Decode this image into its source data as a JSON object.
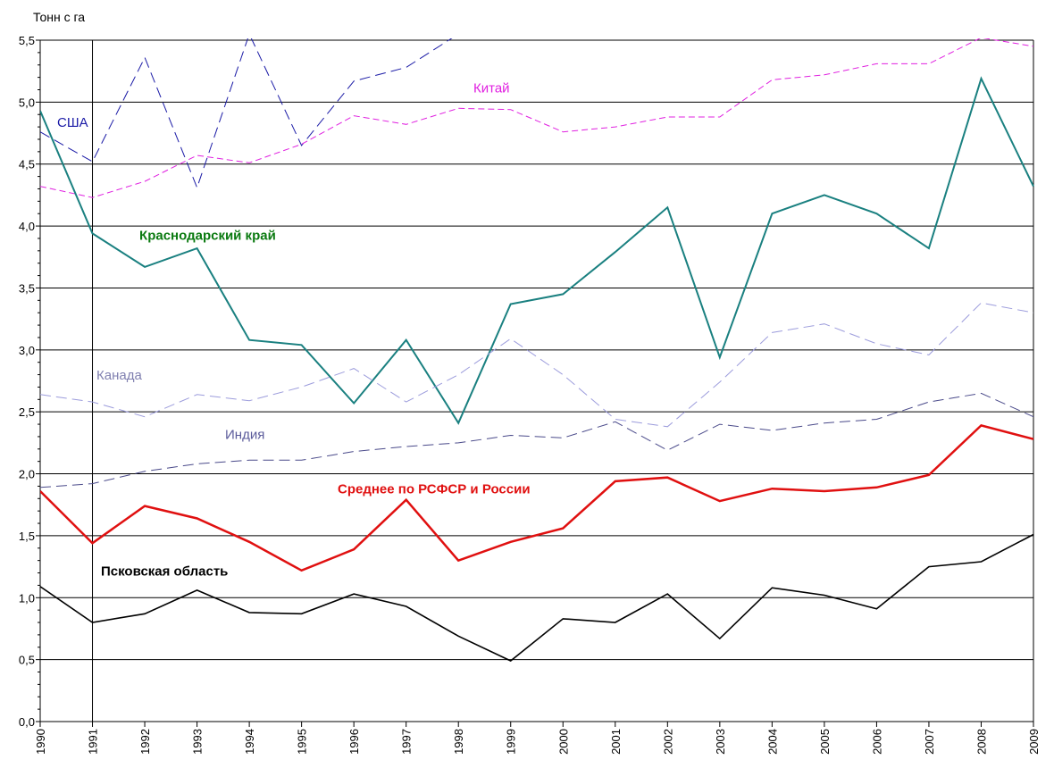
{
  "chart_data": {
    "type": "line",
    "ylabel": "Тонн с га",
    "xlabel": "",
    "title": "",
    "ylim": [
      0,
      5.5
    ],
    "ytick_step": 0.5,
    "y_tick_labels": [
      "0,0",
      "0,5",
      "1,0",
      "1,5",
      "2,0",
      "2,5",
      "3,0",
      "3,5",
      "4,0",
      "4,5",
      "5,0",
      "5,5"
    ],
    "x": [
      "1990",
      "1991",
      "1992",
      "1993",
      "1994",
      "1995",
      "1996",
      "1997",
      "1998",
      "1999",
      "2000",
      "2001",
      "2002",
      "2003",
      "2004",
      "2005",
      "2006",
      "2007",
      "2008",
      "2009"
    ],
    "grid": "horizontal",
    "reference_line_year": "1991",
    "series": [
      {
        "name": "США",
        "color": "#1a1aa6",
        "style": "long-dash",
        "values": [
          4.76,
          4.52,
          5.36,
          4.31,
          5.55,
          4.65,
          5.17,
          5.28,
          5.55,
          null,
          null,
          null,
          null,
          null,
          null,
          null,
          null,
          null,
          null,
          null
        ]
      },
      {
        "name": "Китай",
        "color": "#e020e0",
        "style": "dash",
        "values": [
          4.32,
          4.23,
          4.36,
          4.57,
          4.51,
          4.66,
          4.89,
          4.82,
          4.95,
          4.94,
          4.76,
          4.8,
          4.88,
          4.88,
          5.18,
          5.22,
          5.31,
          5.31,
          5.52,
          5.45
        ]
      },
      {
        "name": "Краснодарский край",
        "color": "#1a8080",
        "style": "solid",
        "values": [
          4.93,
          3.94,
          3.67,
          3.82,
          3.08,
          3.04,
          2.57,
          3.08,
          2.41,
          3.37,
          3.45,
          3.79,
          4.15,
          2.94,
          4.1,
          4.25,
          4.1,
          3.82,
          5.19,
          4.32
        ]
      },
      {
        "name": "Канада",
        "color": "#9c9cdc",
        "style": "long-dash",
        "values": [
          2.64,
          2.58,
          2.46,
          2.64,
          2.59,
          2.7,
          2.85,
          2.58,
          2.8,
          3.09,
          2.8,
          2.44,
          2.38,
          2.74,
          3.14,
          3.21,
          3.05,
          2.96,
          3.38,
          3.3
        ]
      },
      {
        "name": "Индия",
        "color": "#4a4a8a",
        "style": "long-dash",
        "values": [
          1.89,
          1.92,
          2.02,
          2.08,
          2.11,
          2.11,
          2.18,
          2.22,
          2.25,
          2.31,
          2.29,
          2.42,
          2.19,
          2.4,
          2.35,
          2.41,
          2.44,
          2.58,
          2.65,
          2.46
        ]
      },
      {
        "name": "Среднее по РСФСР и России",
        "color": "#e01010",
        "style": "solid",
        "values": [
          1.86,
          1.44,
          1.74,
          1.64,
          1.45,
          1.22,
          1.39,
          1.79,
          1.3,
          1.45,
          1.56,
          1.94,
          1.97,
          1.78,
          1.88,
          1.86,
          1.89,
          1.99,
          2.39,
          2.28
        ]
      },
      {
        "name": "Псковская область",
        "color": "#000000",
        "style": "solid",
        "values": [
          1.09,
          0.8,
          0.87,
          1.06,
          0.88,
          0.87,
          1.03,
          0.93,
          0.69,
          0.49,
          0.83,
          0.8,
          1.03,
          0.67,
          1.08,
          1.02,
          0.91,
          1.25,
          1.29,
          1.51
        ]
      }
    ]
  }
}
